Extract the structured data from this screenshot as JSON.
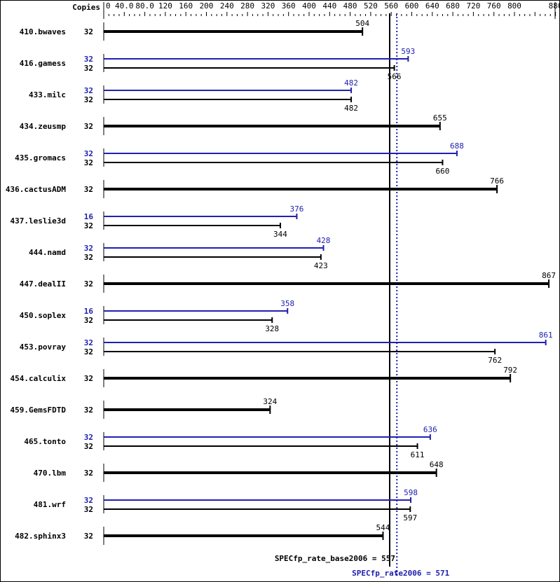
{
  "chart_data": {
    "type": "bar",
    "orientation": "horizontal",
    "axis_header": "Copies",
    "xlim": [
      0,
      880
    ],
    "ticks": [
      "0",
      "40.0",
      "80.0",
      "120",
      "160",
      "200",
      "240",
      "280",
      "320",
      "360",
      "400",
      "440",
      "480",
      "520",
      "560",
      "600",
      "640",
      "680",
      "720",
      "760",
      "800",
      "880"
    ],
    "tick_values": [
      0,
      40,
      80,
      120,
      160,
      200,
      240,
      280,
      320,
      360,
      400,
      440,
      480,
      520,
      560,
      600,
      640,
      680,
      720,
      760,
      800,
      880
    ],
    "colors": {
      "base": "#000000",
      "peak": "#2020b0"
    },
    "benchmarks": [
      {
        "name": "410.bwaves",
        "base_copies": "32",
        "base": 504
      },
      {
        "name": "416.gamess",
        "peak_copies": "32",
        "peak": 593,
        "base_copies": "32",
        "base": 566
      },
      {
        "name": "433.milc",
        "peak_copies": "32",
        "peak": 482,
        "base_copies": "32",
        "base": 482
      },
      {
        "name": "434.zeusmp",
        "base_copies": "32",
        "base": 655
      },
      {
        "name": "435.gromacs",
        "peak_copies": "32",
        "peak": 688,
        "base_copies": "32",
        "base": 660
      },
      {
        "name": "436.cactusADM",
        "base_copies": "32",
        "base": 766
      },
      {
        "name": "437.leslie3d",
        "peak_copies": "16",
        "peak": 376,
        "base_copies": "32",
        "base": 344
      },
      {
        "name": "444.namd",
        "peak_copies": "32",
        "peak": 428,
        "base_copies": "32",
        "base": 423
      },
      {
        "name": "447.dealII",
        "base_copies": "32",
        "base": 867
      },
      {
        "name": "450.soplex",
        "peak_copies": "16",
        "peak": 358,
        "base_copies": "32",
        "base": 328
      },
      {
        "name": "453.povray",
        "peak_copies": "32",
        "peak": 861,
        "base_copies": "32",
        "base": 762
      },
      {
        "name": "454.calculix",
        "base_copies": "32",
        "base": 792
      },
      {
        "name": "459.GemsFDTD",
        "base_copies": "32",
        "base": 324
      },
      {
        "name": "465.tonto",
        "peak_copies": "32",
        "peak": 636,
        "base_copies": "32",
        "base": 611
      },
      {
        "name": "470.lbm",
        "base_copies": "32",
        "base": 648
      },
      {
        "name": "481.wrf",
        "peak_copies": "32",
        "peak": 598,
        "base_copies": "32",
        "base": 597
      },
      {
        "name": "482.sphinx3",
        "base_copies": "32",
        "base": 544
      }
    ],
    "reference_lines": [
      {
        "label": "SPECfp_rate_base2006 = 557",
        "value": 557,
        "style": "solid",
        "color": "#000000"
      },
      {
        "label": "SPECfp_rate2006 = 571",
        "value": 571,
        "style": "dotted",
        "color": "#2020b0"
      }
    ]
  }
}
